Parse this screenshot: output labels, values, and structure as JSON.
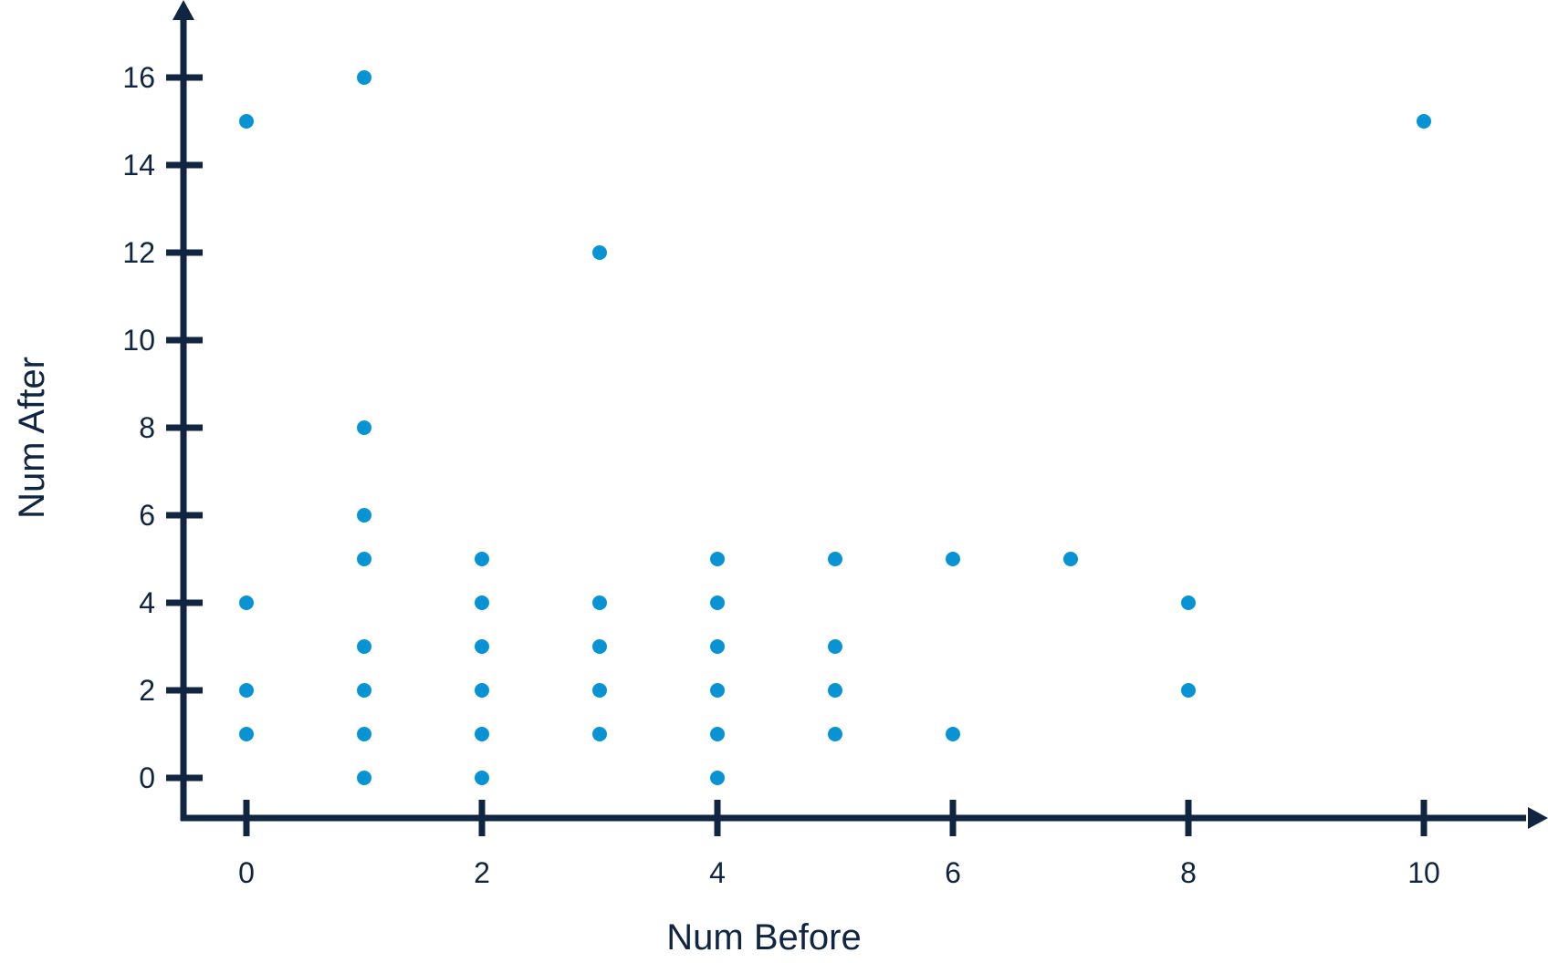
{
  "chart_data": {
    "type": "scatter",
    "title": "",
    "xlabel": "Num Before",
    "ylabel": "Num After",
    "xlim": [
      -0.5,
      11.2
    ],
    "ylim": [
      -0.9,
      17.5
    ],
    "xticks": [
      0,
      2,
      4,
      6,
      8,
      10
    ],
    "yticks": [
      0,
      2,
      4,
      6,
      8,
      10,
      12,
      14,
      16
    ],
    "grid": false,
    "legend": "none",
    "axis_color": "#0f2542",
    "marker_color": "#0894d4",
    "series": [
      {
        "points": [
          {
            "x": 0,
            "y": 15
          },
          {
            "x": 0,
            "y": 4
          },
          {
            "x": 0,
            "y": 2
          },
          {
            "x": 0,
            "y": 1
          },
          {
            "x": 1,
            "y": 16
          },
          {
            "x": 1,
            "y": 8
          },
          {
            "x": 1,
            "y": 6
          },
          {
            "x": 1,
            "y": 5
          },
          {
            "x": 1,
            "y": 3
          },
          {
            "x": 1,
            "y": 2
          },
          {
            "x": 1,
            "y": 1
          },
          {
            "x": 1,
            "y": 0
          },
          {
            "x": 2,
            "y": 5
          },
          {
            "x": 2,
            "y": 4
          },
          {
            "x": 2,
            "y": 3
          },
          {
            "x": 2,
            "y": 2
          },
          {
            "x": 2,
            "y": 1
          },
          {
            "x": 2,
            "y": 0
          },
          {
            "x": 3,
            "y": 12
          },
          {
            "x": 3,
            "y": 4
          },
          {
            "x": 3,
            "y": 3
          },
          {
            "x": 3,
            "y": 2
          },
          {
            "x": 3,
            "y": 1
          },
          {
            "x": 4,
            "y": 5
          },
          {
            "x": 4,
            "y": 4
          },
          {
            "x": 4,
            "y": 3
          },
          {
            "x": 4,
            "y": 2
          },
          {
            "x": 4,
            "y": 1
          },
          {
            "x": 4,
            "y": 0
          },
          {
            "x": 5,
            "y": 5
          },
          {
            "x": 5,
            "y": 3
          },
          {
            "x": 5,
            "y": 2
          },
          {
            "x": 5,
            "y": 1
          },
          {
            "x": 6,
            "y": 5
          },
          {
            "x": 6,
            "y": 1
          },
          {
            "x": 7,
            "y": 5
          },
          {
            "x": 8,
            "y": 4
          },
          {
            "x": 8,
            "y": 2
          },
          {
            "x": 10,
            "y": 15
          }
        ]
      }
    ]
  }
}
